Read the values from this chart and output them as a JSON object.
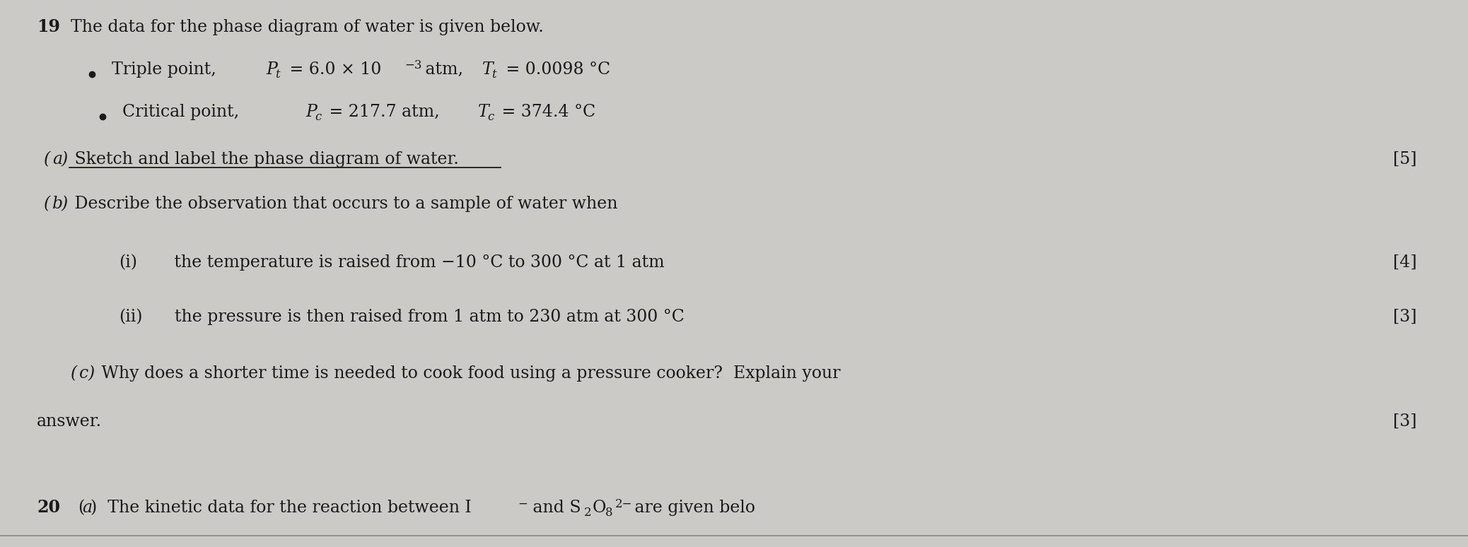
{
  "background_color": "#cccac7",
  "text_color": "#1a1a1a",
  "q_num": "19",
  "title": "The data for the phase diagram of water is given below.",
  "bullet1_pre": "Triple point, ",
  "bullet1_P": "P",
  "bullet1_sub1": "t",
  "bullet1_mid": " = 6.0 × 10",
  "bullet1_sup": "−3",
  "bullet1_post": " atm, ",
  "bullet1_T": "T",
  "bullet1_sub2": "t",
  "bullet1_end": " = 0.0098 °C",
  "bullet2_pre": "Critical point, ",
  "bullet2_P": "P",
  "bullet2_sub1": "c",
  "bullet2_mid": " = 217.7 atm, ",
  "bullet2_T": "T",
  "bullet2_sub2": "c",
  "bullet2_end": " = 374.4 °C",
  "part_a_label": "(a)",
  "part_a_text": " Sketch and label the phase diagram of water.",
  "part_a_mark": "[5]",
  "part_b_label": "(b)",
  "part_b_text": " Describe the observation that occurs to a sample of water when",
  "part_bi_label": "(i)",
  "part_bi_text": "   the temperature is raised from −10 °C to 300 °C at 1 atm",
  "part_bi_mark": "[4]",
  "part_bii_label": "(ii)",
  "part_bii_text": "  the pressure is then raised from 1 atm to 230 atm at 300 °C",
  "part_bii_mark": "[3]",
  "part_c_label": "(c)",
  "part_c_text": " Why does a shorter time is needed to cook food using a pressure cooker?  Explain your",
  "part_c_cont": "answer.",
  "part_c_mark": "[3]",
  "bot_line1": "20  (a)  The kinetic data for the reaction between I",
  "bot_line2": " and S",
  "bot_line3": "O",
  "bot_line4": " are given belo",
  "fs": 17,
  "fs_small": 12
}
